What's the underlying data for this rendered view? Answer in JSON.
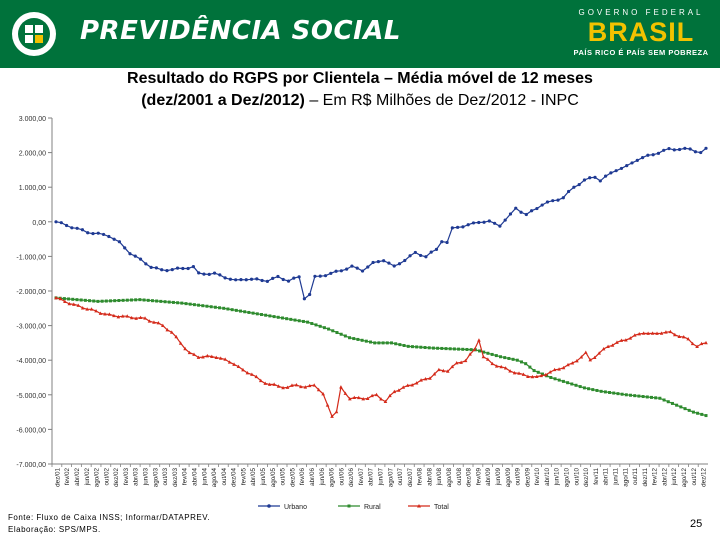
{
  "header": {
    "brand": "PREVIDÊNCIA SOCIAL",
    "gov_label": "GOVERNO FEDERAL",
    "country": "BRASIL",
    "slogan": "PAÍS RICO É PAÍS SEM POBREZA"
  },
  "title": {
    "line1": "Resultado do RGPS por Clientela – Média móvel de 12 meses",
    "line2_bold": "(dez/2001 a Dez/2012)",
    "line2_rest": " – Em R$ Milhões de Dez/2012 - INPC"
  },
  "footer": {
    "source": "Fonte: Fluxo de Caixa INSS; Informar/DATAPREV.",
    "elaboration": "Elaboração: SPS/MPS."
  },
  "page_number": "25",
  "colors": {
    "header": "#00723b",
    "urbano": "#1f3a93",
    "rural": "#2e8b2e",
    "total": "#d42a1a"
  },
  "chart_data": {
    "type": "line",
    "title": "Resultado do RGPS por Clientela – Média móvel de 12 meses (dez/2001 a Dez/2012) – Em R$ Milhões de Dez/2012 - INPC",
    "ylim": [
      -7000,
      3000
    ],
    "yticks": [
      "3.000,00",
      "2.000,00",
      "1.000,00",
      "0,00",
      "-1.000,00",
      "-2.000,00",
      "-3.000,00",
      "-4.000,00",
      "-5.000,00",
      "-6.000,00",
      "-7.000,00"
    ],
    "ytick_values": [
      3000,
      2000,
      1000,
      0,
      -1000,
      -2000,
      -3000,
      -4000,
      -5000,
      -6000,
      -7000
    ],
    "categories": [
      "dez/01",
      "fev/02",
      "abr/02",
      "jun/02",
      "ago/02",
      "out/02",
      "dez/02",
      "fev/03",
      "abr/03",
      "jun/03",
      "ago/03",
      "out/03",
      "dez/03",
      "fev/04",
      "abr/04",
      "jun/04",
      "ago/04",
      "out/04",
      "dez/04",
      "fev/05",
      "abr/05",
      "jun/05",
      "ago/05",
      "out/05",
      "dez/05",
      "fev/06",
      "abr/06",
      "jun/06",
      "ago/06",
      "out/06",
      "dez/06",
      "fev/07",
      "abr/07",
      "jun/07",
      "ago/07",
      "out/07",
      "dez/07",
      "fev/08",
      "abr/08",
      "jun/08",
      "ago/08",
      "out/08",
      "dez/08",
      "fev/09",
      "abr/09",
      "jun/09",
      "ago/09",
      "out/09",
      "dez/09",
      "fev/10",
      "abr/10",
      "jun/10",
      "ago/10",
      "out/10",
      "dez/10",
      "fev/11",
      "abr/11",
      "jun/11",
      "ago/11",
      "out/11",
      "dez/11",
      "fev/12",
      "abr/12",
      "jun/12",
      "ago/12",
      "out/12",
      "dez/12"
    ],
    "legend": [
      "Urbano",
      "Rural",
      "Total"
    ],
    "legend_position": "bottom",
    "series": [
      {
        "name": "Urbano",
        "key": [
          [
            0,
            0
          ],
          [
            2,
            -100
          ],
          [
            4,
            -200
          ],
          [
            6,
            -300
          ],
          [
            8,
            -350
          ],
          [
            10,
            -400
          ],
          [
            12,
            -600
          ],
          [
            14,
            -900
          ],
          [
            16,
            -1100
          ],
          [
            18,
            -1300
          ],
          [
            20,
            -1400
          ],
          [
            24,
            -1350
          ],
          [
            26,
            -1300
          ],
          [
            27,
            -1500
          ],
          [
            30,
            -1500
          ],
          [
            32,
            -1600
          ],
          [
            34,
            -1700
          ],
          [
            36,
            -1650
          ],
          [
            40,
            -1700
          ],
          [
            42,
            -1600
          ],
          [
            44,
            -1700
          ],
          [
            46,
            -1600
          ],
          [
            47,
            -2200
          ],
          [
            48,
            -2100
          ],
          [
            49,
            -1600
          ],
          [
            52,
            -1500
          ],
          [
            54,
            -1400
          ],
          [
            56,
            -1300
          ],
          [
            58,
            -1400
          ],
          [
            60,
            -1200
          ],
          [
            62,
            -1100
          ],
          [
            64,
            -1300
          ],
          [
            66,
            -1100
          ],
          [
            68,
            -900
          ],
          [
            70,
            -1000
          ],
          [
            72,
            -800
          ],
          [
            73,
            -550
          ],
          [
            74,
            -600
          ],
          [
            75,
            -200
          ],
          [
            76,
            -150
          ],
          [
            78,
            -100
          ],
          [
            80,
            0
          ],
          [
            82,
            0
          ],
          [
            84,
            -100
          ],
          [
            86,
            200
          ],
          [
            87,
            400
          ],
          [
            88,
            300
          ],
          [
            89,
            200
          ],
          [
            90,
            300
          ],
          [
            92,
            500
          ],
          [
            94,
            600
          ],
          [
            96,
            700
          ],
          [
            98,
            1000
          ],
          [
            100,
            1200
          ],
          [
            102,
            1300
          ],
          [
            103,
            1200
          ],
          [
            104,
            1300
          ],
          [
            106,
            1500
          ],
          [
            108,
            1600
          ],
          [
            110,
            1800
          ],
          [
            112,
            1900
          ],
          [
            114,
            2000
          ],
          [
            116,
            2100
          ],
          [
            118,
            2100
          ],
          [
            120,
            2100
          ],
          [
            122,
            2000
          ],
          [
            123,
            2100
          ]
        ]
      },
      {
        "name": "Rural",
        "key": [
          [
            0,
            -2200
          ],
          [
            10,
            -2300
          ],
          [
            20,
            -2250
          ],
          [
            30,
            -2350
          ],
          [
            40,
            -2500
          ],
          [
            50,
            -2700
          ],
          [
            60,
            -2900
          ],
          [
            65,
            -3100
          ],
          [
            70,
            -3350
          ],
          [
            76,
            -3500
          ],
          [
            80,
            -3500
          ],
          [
            84,
            -3600
          ],
          [
            90,
            -3650
          ],
          [
            100,
            -3700
          ],
          [
            106,
            -3900
          ],
          [
            110,
            -4000
          ],
          [
            112,
            -4100
          ],
          [
            114,
            -4300
          ],
          [
            118,
            -4500
          ],
          [
            122,
            -4650
          ],
          [
            126,
            -4800
          ],
          [
            130,
            -4900
          ],
          [
            136,
            -5000
          ],
          [
            140,
            -5050
          ],
          [
            144,
            -5100
          ],
          [
            148,
            -5300
          ],
          [
            152,
            -5500
          ],
          [
            155,
            -5600
          ]
        ]
      },
      {
        "name": "Total",
        "key": [
          [
            0,
            -2200
          ],
          [
            4,
            -2400
          ],
          [
            8,
            -2550
          ],
          [
            12,
            -2700
          ],
          [
            16,
            -2750
          ],
          [
            20,
            -2800
          ],
          [
            24,
            -3000
          ],
          [
            26,
            -3200
          ],
          [
            28,
            -3500
          ],
          [
            30,
            -3800
          ],
          [
            32,
            -3900
          ],
          [
            36,
            -3900
          ],
          [
            38,
            -4000
          ],
          [
            40,
            -4100
          ],
          [
            42,
            -4300
          ],
          [
            44,
            -4400
          ],
          [
            46,
            -4600
          ],
          [
            48,
            -4700
          ],
          [
            50,
            -4750
          ],
          [
            52,
            -4800
          ],
          [
            54,
            -4700
          ],
          [
            56,
            -4800
          ],
          [
            58,
            -4700
          ],
          [
            60,
            -5000
          ],
          [
            62,
            -5600
          ],
          [
            63,
            -5500
          ],
          [
            64,
            -4800
          ],
          [
            66,
            -5100
          ],
          [
            70,
            -5100
          ],
          [
            72,
            -5000
          ],
          [
            74,
            -5200
          ],
          [
            76,
            -4900
          ],
          [
            78,
            -4800
          ],
          [
            80,
            -4700
          ],
          [
            82,
            -4600
          ],
          [
            84,
            -4500
          ],
          [
            86,
            -4300
          ],
          [
            88,
            -4300
          ],
          [
            90,
            -4100
          ],
          [
            92,
            -4000
          ],
          [
            94,
            -3700
          ],
          [
            95,
            -3400
          ],
          [
            96,
            -3900
          ],
          [
            98,
            -4100
          ],
          [
            100,
            -4200
          ],
          [
            102,
            -4300
          ],
          [
            104,
            -4400
          ],
          [
            106,
            -4450
          ],
          [
            108,
            -4500
          ],
          [
            110,
            -4400
          ],
          [
            112,
            -4300
          ],
          [
            114,
            -4200
          ],
          [
            116,
            -4100
          ],
          [
            118,
            -3900
          ],
          [
            119,
            -3800
          ],
          [
            120,
            -4000
          ],
          [
            122,
            -3800
          ],
          [
            124,
            -3600
          ],
          [
            126,
            -3500
          ],
          [
            128,
            -3400
          ],
          [
            130,
            -3300
          ],
          [
            132,
            -3200
          ],
          [
            134,
            -3250
          ],
          [
            136,
            -3200
          ],
          [
            138,
            -3200
          ],
          [
            140,
            -3300
          ],
          [
            142,
            -3400
          ],
          [
            144,
            -3600
          ],
          [
            146,
            -3500
          ]
        ]
      }
    ],
    "n_points": [
      124,
      156,
      147
    ]
  }
}
